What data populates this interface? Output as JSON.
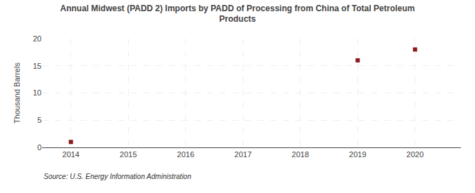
{
  "chart_data": {
    "type": "scatter",
    "title": "Annual Midwest (PADD 2) Imports by PADD of Processing from China of Total Petroleum\nProducts",
    "ylabel": "Thousand Barrels",
    "annotations": [
      "Source: U.S. Energy Information Administration"
    ],
    "x": [
      2014,
      2019,
      2020
    ],
    "values": [
      1,
      16,
      18
    ],
    "color": "#8b1a1a",
    "marker": "square",
    "xlim": [
      2013.5,
      2020.8
    ],
    "xticks": [
      2014,
      2015,
      2016,
      2017,
      2018,
      2019,
      2020
    ],
    "ylim": [
      0,
      20
    ],
    "yticks": [
      0,
      5,
      10,
      15,
      20
    ],
    "grid": true
  }
}
